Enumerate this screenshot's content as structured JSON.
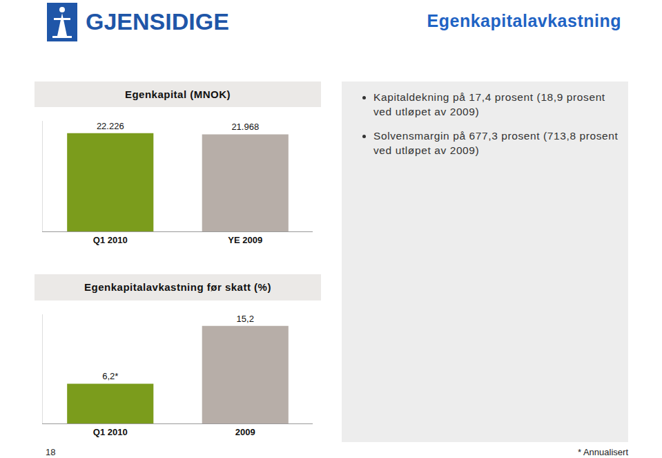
{
  "page": {
    "logo": "GJENSIDIGE",
    "title": "Egenkapitalavkastning",
    "bullets": [
      "Kapitaldekning på 17,4 prosent (18,9 prosent ved utløpet av 2009)",
      "Solvensmargin på 677,3 prosent (713,8 prosent ved utløpet av 2009)"
    ],
    "page_number": "18",
    "footnote": "* Annualisert"
  },
  "chart_data": [
    {
      "type": "bar",
      "title": "Egenkapital (MNOK)",
      "categories": [
        "Q1 2010",
        "YE 2009"
      ],
      "values": [
        22226,
        21968
      ],
      "value_labels": [
        "22.226",
        "21.968"
      ],
      "colors": [
        "#7b9c1c",
        "#b7aea8"
      ],
      "ylim": [
        0,
        25000
      ],
      "data_labels": true,
      "tick_labels": "x"
    },
    {
      "type": "bar",
      "title": "Egenkapitalavkastning før skatt (%)",
      "categories": [
        "Q1 2010",
        "2009"
      ],
      "values": [
        6.2,
        15.2
      ],
      "value_labels": [
        "6,2*",
        "15,2"
      ],
      "colors": [
        "#7b9c1c",
        "#b7aea8"
      ],
      "ylim": [
        0,
        17
      ],
      "data_labels": true,
      "tick_labels": "x"
    }
  ]
}
